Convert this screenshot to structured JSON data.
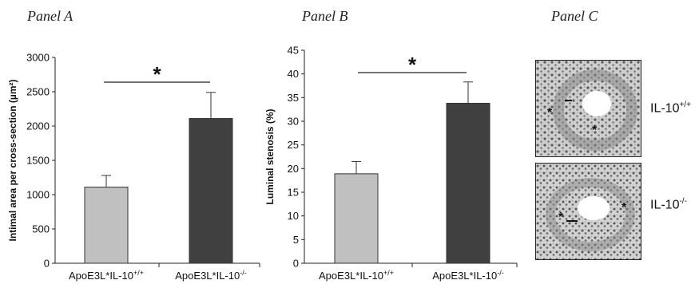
{
  "panels": {
    "a": {
      "title": "Panel A"
    },
    "b": {
      "title": "Panel B"
    },
    "c": {
      "title": "Panel C",
      "images": [
        {
          "genotype_base": "IL-10",
          "genotype_sup": "+/+"
        },
        {
          "genotype_base": "IL-10",
          "genotype_sup": "-/-"
        }
      ]
    }
  },
  "colors": {
    "wildtype": "#c0c0c0",
    "knockout": "#404040",
    "axis": "#222222"
  },
  "chart_data": [
    {
      "type": "bar",
      "title": "",
      "ylabel": "Intimal area per cross-section (µm²)",
      "xlabel": "",
      "categories": [
        {
          "base": "ApoE3L*IL-10",
          "sup": "+/+"
        },
        {
          "base": "ApoE3L*IL-10",
          "sup": "-/-"
        }
      ],
      "values": [
        1110,
        2110
      ],
      "error_upper": [
        1280,
        2490
      ],
      "ylim": [
        0,
        3000
      ],
      "yticks": [
        0,
        500,
        1000,
        1500,
        2000,
        2500,
        3000
      ],
      "significance": "*",
      "grid": false
    },
    {
      "type": "bar",
      "title": "",
      "ylabel": "Luminal stenosis (%)",
      "xlabel": "",
      "categories": [
        {
          "base": "ApoE3L*IL-10",
          "sup": "+/+"
        },
        {
          "base": "ApoE3L*IL-10",
          "sup": "-/-"
        }
      ],
      "values": [
        18.9,
        33.8
      ],
      "error_upper": [
        21.5,
        38.3
      ],
      "ylim": [
        0,
        45
      ],
      "yticks": [
        0,
        5,
        10,
        15,
        20,
        25,
        30,
        35,
        40,
        45
      ],
      "significance": "*",
      "grid": false
    }
  ]
}
